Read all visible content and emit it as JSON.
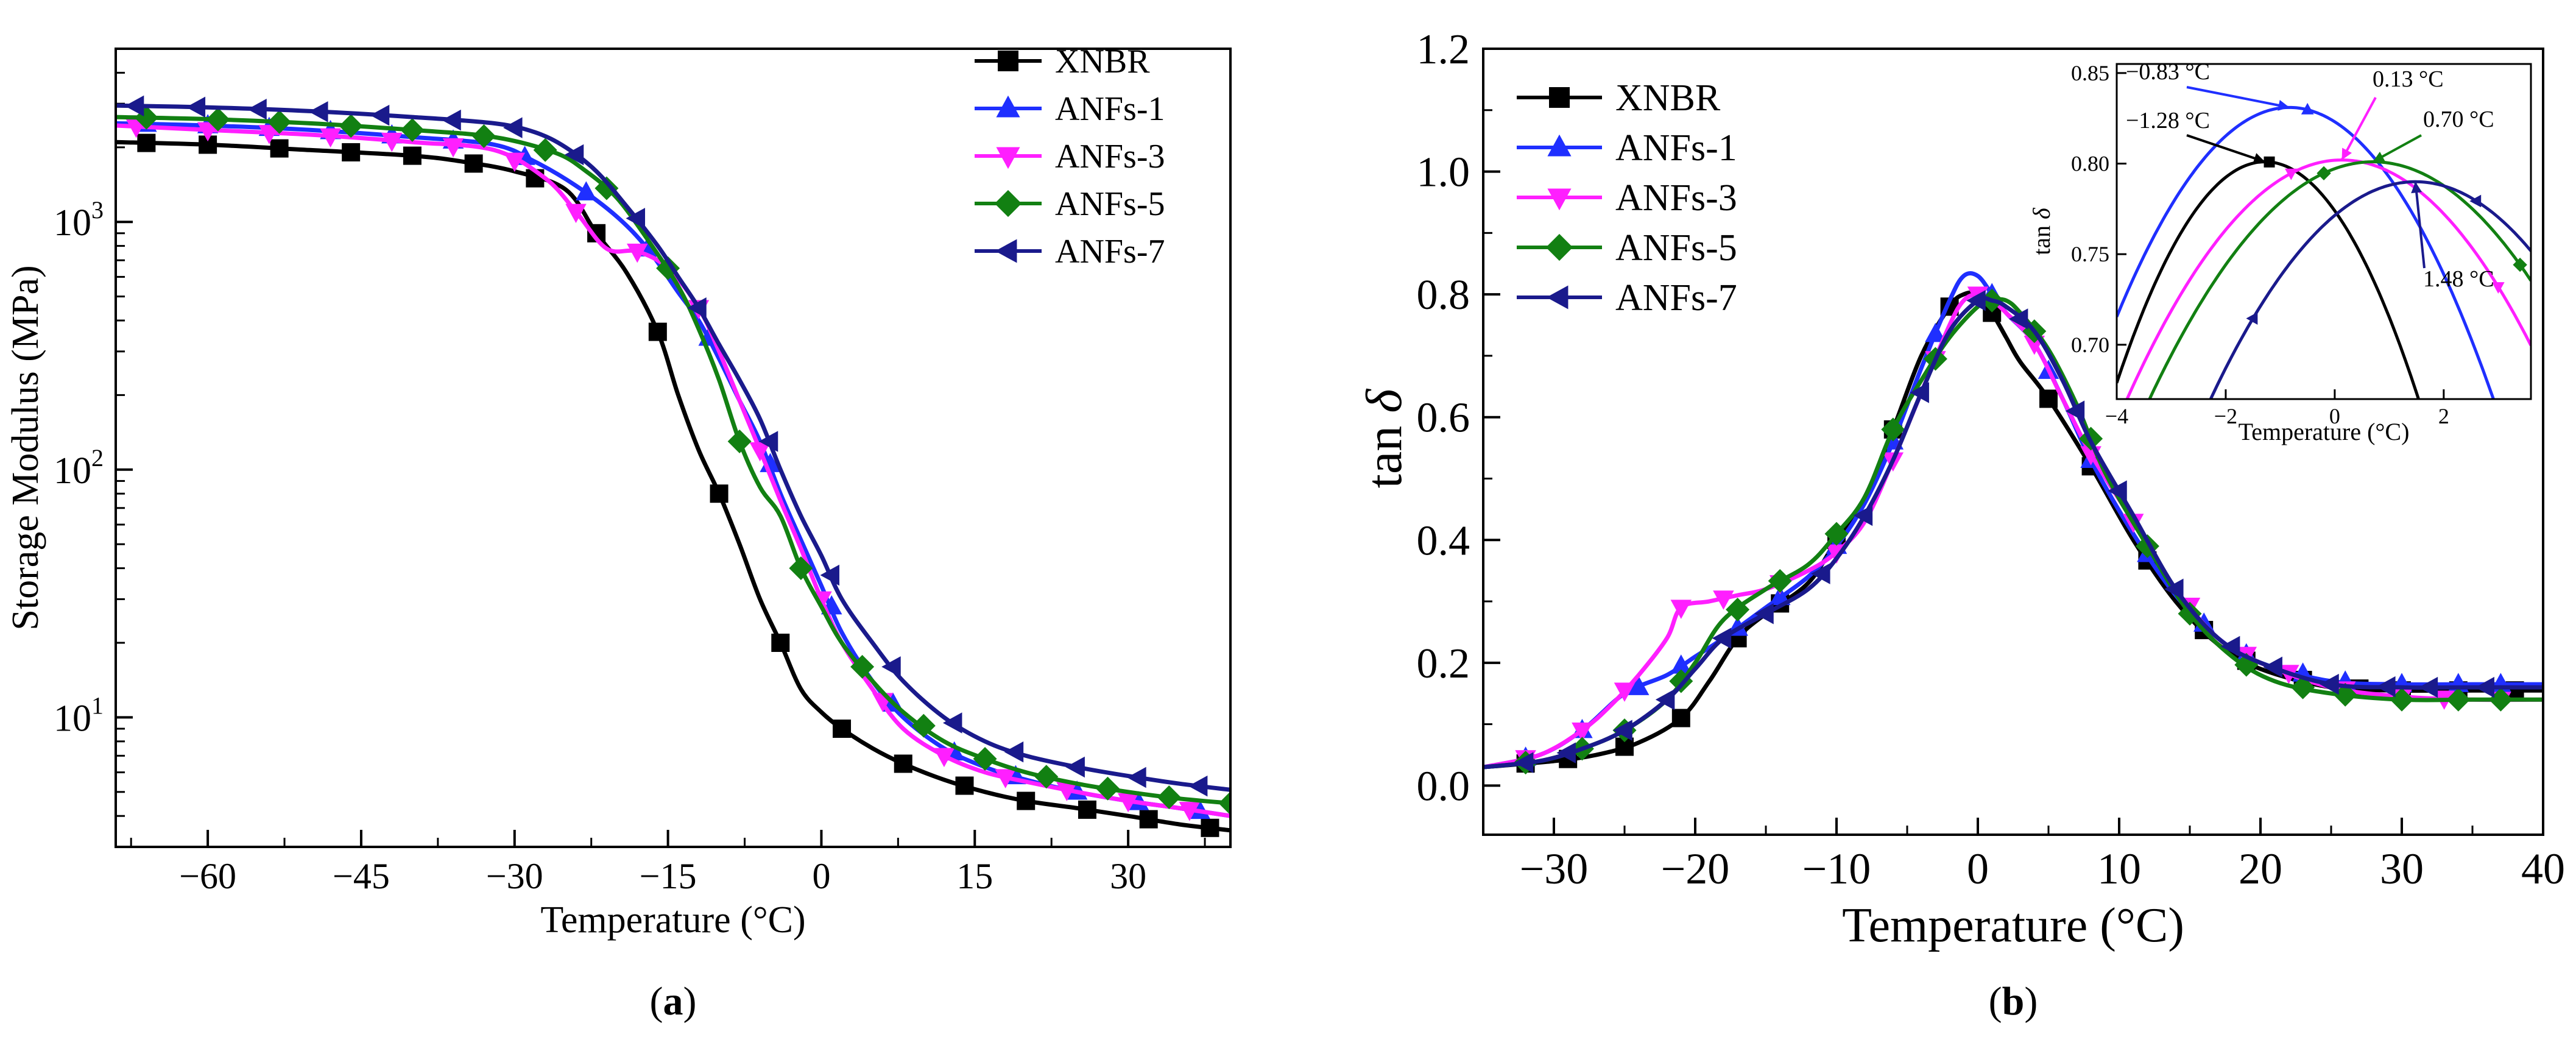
{
  "colors": {
    "XNBR": "#000000",
    "ANFs-1": "#1f2fff",
    "ANFs-3": "#ff1fff",
    "ANFs-5": "#128012",
    "ANFs-7": "#1a1a8c"
  },
  "chart_data": [
    {
      "id": "a",
      "type": "line",
      "panel_label": "a",
      "title": "",
      "xlabel": "Temperature (°C)",
      "ylabel": "Storage Modulus (MPa)",
      "yscale": "log",
      "xlim": [
        -69,
        40
      ],
      "ylim": [
        3.0,
        5000
      ],
      "xticks": [
        -60,
        -45,
        -30,
        -15,
        0,
        15,
        30
      ],
      "xtick_labels": [
        "−60",
        "−45",
        "−30",
        "−15",
        "0",
        "15",
        "30"
      ],
      "yticks": [
        {
          "value": 10,
          "base": "10",
          "exp": "1"
        },
        {
          "value": 100,
          "base": "10",
          "exp": "2"
        },
        {
          "value": 1000,
          "base": "10",
          "exp": "3"
        }
      ],
      "legend": [
        "XNBR",
        "ANFs-1",
        "ANFs-3",
        "ANFs-5",
        "ANFs-7"
      ],
      "legend_position": "top-right",
      "series": [
        {
          "name": "XNBR",
          "marker": "square",
          "color": "#000000",
          "x": [
            -69,
            -60,
            -50,
            -40,
            -35,
            -30,
            -25,
            -22,
            -19,
            -16,
            -14,
            -12,
            -10,
            -8,
            -6,
            -4,
            -2,
            0,
            2,
            5,
            8,
            12,
            16,
            20,
            25,
            30,
            35,
            40
          ],
          "y": [
            2100,
            2050,
            1950,
            1850,
            1750,
            1600,
            1350,
            900,
            620,
            360,
            200,
            120,
            80,
            50,
            30,
            20,
            13,
            10.5,
            9,
            7.5,
            6.5,
            5.6,
            5.0,
            4.6,
            4.3,
            4.0,
            3.7,
            3.5
          ],
          "marker_x": [
            -66,
            -60,
            -53,
            -46,
            -40,
            -34,
            -28,
            -22,
            -16,
            -10,
            -4,
            2,
            8,
            14,
            20,
            26,
            32,
            38
          ]
        },
        {
          "name": "ANFs-1",
          "marker": "triangle-up",
          "color": "#1f2fff",
          "x": [
            -69,
            -60,
            -50,
            -40,
            -32,
            -28,
            -24,
            -20,
            -17,
            -14,
            -12,
            -10,
            -8,
            -6,
            -4,
            -2,
            0,
            2,
            5,
            8,
            12,
            16,
            20,
            25,
            30,
            35,
            40
          ],
          "y": [
            2500,
            2450,
            2350,
            2200,
            2050,
            1750,
            1400,
            1050,
            780,
            520,
            400,
            280,
            190,
            130,
            80,
            52,
            34,
            22,
            14,
            10,
            7.5,
            6.3,
            5.6,
            5.0,
            4.6,
            4.3,
            4.0
          ],
          "marker_x": [
            -66,
            -60,
            -54,
            -48,
            -42,
            -36,
            -29,
            -23,
            -17,
            -11,
            -5,
            1,
            7,
            13,
            19,
            25,
            31,
            37
          ]
        },
        {
          "name": "ANFs-3",
          "marker": "triangle-down",
          "color": "#ff1fff",
          "x": [
            -69,
            -60,
            -50,
            -40,
            -32,
            -27,
            -24,
            -21,
            -18,
            -15,
            -12,
            -10,
            -8,
            -6,
            -4,
            -2,
            0,
            2,
            5,
            8,
            12,
            16,
            20,
            25,
            30,
            35,
            40
          ],
          "y": [
            2450,
            2350,
            2250,
            2100,
            1950,
            1500,
            1100,
            780,
            760,
            650,
            450,
            300,
            190,
            120,
            75,
            48,
            30,
            20,
            13,
            9,
            7,
            6,
            5.5,
            5.0,
            4.6,
            4.3,
            4.0
          ],
          "marker_x": [
            -67,
            -60,
            -54,
            -48,
            -42,
            -36,
            -30,
            -24,
            -18,
            -12,
            -6,
            0,
            6,
            12,
            18,
            24,
            30,
            36
          ]
        },
        {
          "name": "ANFs-5",
          "marker": "diamond",
          "color": "#128012",
          "x": [
            -69,
            -60,
            -50,
            -40,
            -32,
            -26,
            -23,
            -20,
            -17,
            -14,
            -12,
            -10,
            -8,
            -6,
            -4,
            -2,
            0,
            2,
            5,
            8,
            12,
            16,
            20,
            25,
            30,
            35,
            40
          ],
          "y": [
            2650,
            2600,
            2500,
            2350,
            2200,
            1900,
            1600,
            1250,
            850,
            550,
            370,
            230,
            130,
            85,
            65,
            40,
            28,
            20,
            14,
            10.5,
            8,
            6.8,
            6.0,
            5.4,
            5.0,
            4.7,
            4.5
          ],
          "marker_x": [
            -66,
            -59,
            -53,
            -46,
            -40,
            -33,
            -27,
            -21,
            -15,
            -8,
            -2,
            4,
            10,
            16,
            22,
            28,
            34,
            40
          ]
        },
        {
          "name": "ANFs-7",
          "marker": "triangle-left",
          "color": "#1a1a8c",
          "x": [
            -69,
            -60,
            -50,
            -40,
            -32,
            -28,
            -25,
            -22,
            -19,
            -16,
            -14,
            -12,
            -10,
            -8,
            -6,
            -4,
            -2,
            0,
            2,
            5,
            8,
            12,
            16,
            20,
            25,
            30,
            35,
            40
          ],
          "y": [
            2950,
            2900,
            2800,
            2650,
            2500,
            2300,
            2000,
            1600,
            1150,
            800,
            600,
            450,
            320,
            230,
            160,
            100,
            65,
            45,
            30,
            20,
            14,
            10,
            8,
            7,
            6.3,
            5.8,
            5.4,
            5.1
          ],
          "marker_x": [
            -67,
            -61,
            -55,
            -49,
            -43,
            -36,
            -30,
            -24,
            -18,
            -12,
            -5,
            1,
            7,
            13,
            19,
            25,
            31,
            37
          ]
        }
      ]
    },
    {
      "id": "b",
      "type": "line",
      "panel_label": "b",
      "title": "",
      "xlabel": "Temperature (°C)",
      "ylabel": "tan δ",
      "ylabel_main": "tan",
      "ylabel_symbol": "δ",
      "xlim": [
        -35,
        40
      ],
      "ylim": [
        -0.08,
        1.2
      ],
      "xticks": [
        -30,
        -20,
        -10,
        0,
        10,
        20,
        30,
        40
      ],
      "xtick_labels": [
        "−30",
        "−20",
        "−10",
        "0",
        "10",
        "20",
        "30",
        "40"
      ],
      "yticks": [
        0.0,
        0.2,
        0.4,
        0.6,
        0.8,
        1.0,
        1.2
      ],
      "ytick_labels": [
        "0.0",
        "0.2",
        "0.4",
        "0.6",
        "0.8",
        "1.0",
        "1.2"
      ],
      "legend": [
        "XNBR",
        "ANFs-1",
        "ANFs-3",
        "ANFs-5",
        "ANFs-7"
      ],
      "legend_position": "top-left",
      "series": [
        {
          "name": "XNBR",
          "marker": "square",
          "color": "#000000",
          "x": [
            -35,
            -30,
            -27,
            -24,
            -21,
            -19,
            -17,
            -15,
            -12,
            -10,
            -8,
            -6,
            -4,
            -2,
            -1,
            0,
            1,
            2,
            3,
            5,
            8,
            11,
            14,
            17,
            20,
            25,
            30,
            35,
            40
          ],
          "y": [
            0.03,
            0.04,
            0.05,
            0.07,
            0.11,
            0.17,
            0.24,
            0.28,
            0.33,
            0.4,
            0.47,
            0.58,
            0.7,
            0.78,
            0.8,
            0.8,
            0.77,
            0.73,
            0.69,
            0.63,
            0.52,
            0.4,
            0.3,
            0.23,
            0.19,
            0.16,
            0.155,
            0.155,
            0.155
          ],
          "marker_x": [
            -32,
            -29,
            -25,
            -21,
            -17,
            -14,
            -10,
            -6,
            -2,
            1,
            5,
            8,
            12,
            16,
            19,
            23,
            27,
            30,
            34,
            38
          ]
        },
        {
          "name": "ANFs-1",
          "marker": "triangle-up",
          "color": "#1f2fff",
          "x": [
            -35,
            -31,
            -28,
            -25,
            -22,
            -20,
            -18,
            -15,
            -12,
            -10,
            -8,
            -6,
            -4,
            -2,
            -1,
            0,
            1,
            2,
            4,
            6,
            8,
            11,
            14,
            17,
            20,
            25,
            30,
            35,
            40
          ],
          "y": [
            0.03,
            0.05,
            0.09,
            0.15,
            0.18,
            0.21,
            0.24,
            0.29,
            0.34,
            0.39,
            0.46,
            0.56,
            0.68,
            0.79,
            0.83,
            0.83,
            0.8,
            0.77,
            0.72,
            0.63,
            0.53,
            0.41,
            0.31,
            0.24,
            0.2,
            0.17,
            0.165,
            0.165,
            0.165
          ],
          "marker_x": [
            -32,
            -28,
            -24,
            -21,
            -17,
            -14,
            -10,
            -6,
            -3,
            1,
            5,
            8,
            12,
            16,
            19,
            23,
            26,
            30,
            34,
            37
          ]
        },
        {
          "name": "ANFs-3",
          "marker": "triangle-down",
          "color": "#ff1fff",
          "x": [
            -35,
            -31,
            -28,
            -26,
            -24,
            -22,
            -21,
            -19,
            -17,
            -15,
            -12,
            -10,
            -8,
            -6,
            -4,
            -2,
            -1,
            0,
            1,
            2,
            4,
            6,
            8,
            11,
            14,
            17,
            20,
            25,
            30,
            35,
            40
          ],
          "y": [
            0.03,
            0.05,
            0.09,
            0.13,
            0.18,
            0.24,
            0.29,
            0.3,
            0.31,
            0.32,
            0.35,
            0.38,
            0.43,
            0.53,
            0.64,
            0.75,
            0.79,
            0.8,
            0.79,
            0.77,
            0.72,
            0.63,
            0.54,
            0.43,
            0.32,
            0.24,
            0.2,
            0.16,
            0.145,
            0.14,
            0.14
          ],
          "marker_x": [
            -32,
            -28,
            -25,
            -21,
            -18,
            -14,
            -10,
            -6,
            -3,
            0,
            4,
            8,
            11,
            15,
            19,
            22,
            26,
            30,
            33,
            37
          ]
        },
        {
          "name": "ANFs-5",
          "marker": "diamond",
          "color": "#128012",
          "x": [
            -35,
            -31,
            -28,
            -25,
            -22,
            -20,
            -18,
            -15,
            -12,
            -10,
            -8,
            -6,
            -4,
            -2,
            0,
            1,
            2,
            3,
            5,
            7,
            9,
            12,
            15,
            18,
            21,
            25,
            30,
            35,
            40
          ],
          "y": [
            0.03,
            0.04,
            0.06,
            0.09,
            0.14,
            0.2,
            0.27,
            0.32,
            0.36,
            0.41,
            0.47,
            0.58,
            0.66,
            0.73,
            0.78,
            0.79,
            0.79,
            0.77,
            0.71,
            0.62,
            0.51,
            0.39,
            0.28,
            0.21,
            0.17,
            0.15,
            0.14,
            0.14,
            0.14
          ],
          "marker_x": [
            -32,
            -28,
            -25,
            -21,
            -17,
            -14,
            -10,
            -6,
            -3,
            1,
            4,
            8,
            12,
            15,
            19,
            23,
            26,
            30,
            34,
            37
          ]
        },
        {
          "name": "ANFs-7",
          "marker": "triangle-left",
          "color": "#1a1a8c",
          "x": [
            -35,
            -31,
            -28,
            -25,
            -22,
            -20,
            -18,
            -15,
            -12,
            -10,
            -8,
            -6,
            -4,
            -2,
            0,
            1,
            2,
            4,
            6,
            8,
            11,
            14,
            17,
            20,
            25,
            30,
            35,
            40
          ],
          "y": [
            0.03,
            0.04,
            0.06,
            0.09,
            0.14,
            0.19,
            0.24,
            0.28,
            0.32,
            0.37,
            0.44,
            0.53,
            0.64,
            0.74,
            0.79,
            0.79,
            0.78,
            0.74,
            0.66,
            0.56,
            0.44,
            0.32,
            0.24,
            0.2,
            0.165,
            0.16,
            0.16,
            0.16
          ],
          "marker_x": [
            -32,
            -29,
            -25,
            -22,
            -18,
            -15,
            -11,
            -8,
            -4,
            0,
            3,
            7,
            10,
            14,
            18,
            21,
            25,
            29,
            32,
            36
          ]
        }
      ]
    },
    {
      "id": "b-inset",
      "type": "line",
      "title": "",
      "xlabel": "Temperature (°C)",
      "ylabel": "tan δ",
      "ylabel_main": "tan",
      "ylabel_symbol": "δ",
      "xlim": [
        -4,
        3.6
      ],
      "ylim": [
        0.67,
        0.855
      ],
      "xticks": [
        -4,
        -2,
        0,
        2
      ],
      "xtick_labels": [
        "−4",
        "−2",
        "0",
        "2"
      ],
      "yticks": [
        0.7,
        0.75,
        0.8,
        0.85
      ],
      "ytick_labels": [
        "0.70",
        "0.75",
        "0.80",
        "0.85"
      ],
      "annotations": [
        {
          "text": "−0.83 °C",
          "series": "ANFs-1",
          "peak_x": -0.83,
          "peak_y": 0.831
        },
        {
          "text": "0.13 °C",
          "series": "ANFs-3",
          "peak_x": 0.13,
          "peak_y": 0.802
        },
        {
          "text": "−1.28 °C",
          "series": "XNBR",
          "peak_x": -1.28,
          "peak_y": 0.801
        },
        {
          "text": "0.70 °C",
          "series": "ANFs-5",
          "peak_x": 0.7,
          "peak_y": 0.801
        },
        {
          "text": "1.48 °C",
          "series": "ANFs-7",
          "peak_x": 1.48,
          "peak_y": 0.79
        }
      ],
      "series": [
        {
          "name": "XNBR",
          "color": "#000000",
          "peak": -1.28,
          "height": 0.801,
          "curv": 0.0165,
          "marker": "square",
          "marker_x": [
            -1.2,
            2.3
          ]
        },
        {
          "name": "ANFs-1",
          "color": "#1f2fff",
          "peak": -0.83,
          "height": 0.831,
          "curv": 0.0115,
          "marker": "triangle-up",
          "marker_x": [
            -0.5,
            3.2
          ]
        },
        {
          "name": "ANFs-3",
          "color": "#ff1fff",
          "peak": 0.13,
          "height": 0.802,
          "curv": 0.0085,
          "marker": "triangle-down",
          "marker_x": [
            -0.8,
            3.0
          ]
        },
        {
          "name": "ANFs-5",
          "color": "#128012",
          "peak": 0.7,
          "height": 0.801,
          "curv": 0.0078,
          "marker": "diamond",
          "marker_x": [
            -0.2,
            3.4
          ]
        },
        {
          "name": "ANFs-7",
          "color": "#1a1a8c",
          "peak": 1.48,
          "height": 0.79,
          "curv": 0.0085,
          "marker": "triangle-left",
          "marker_x": [
            -1.5,
            2.6
          ]
        }
      ]
    }
  ]
}
